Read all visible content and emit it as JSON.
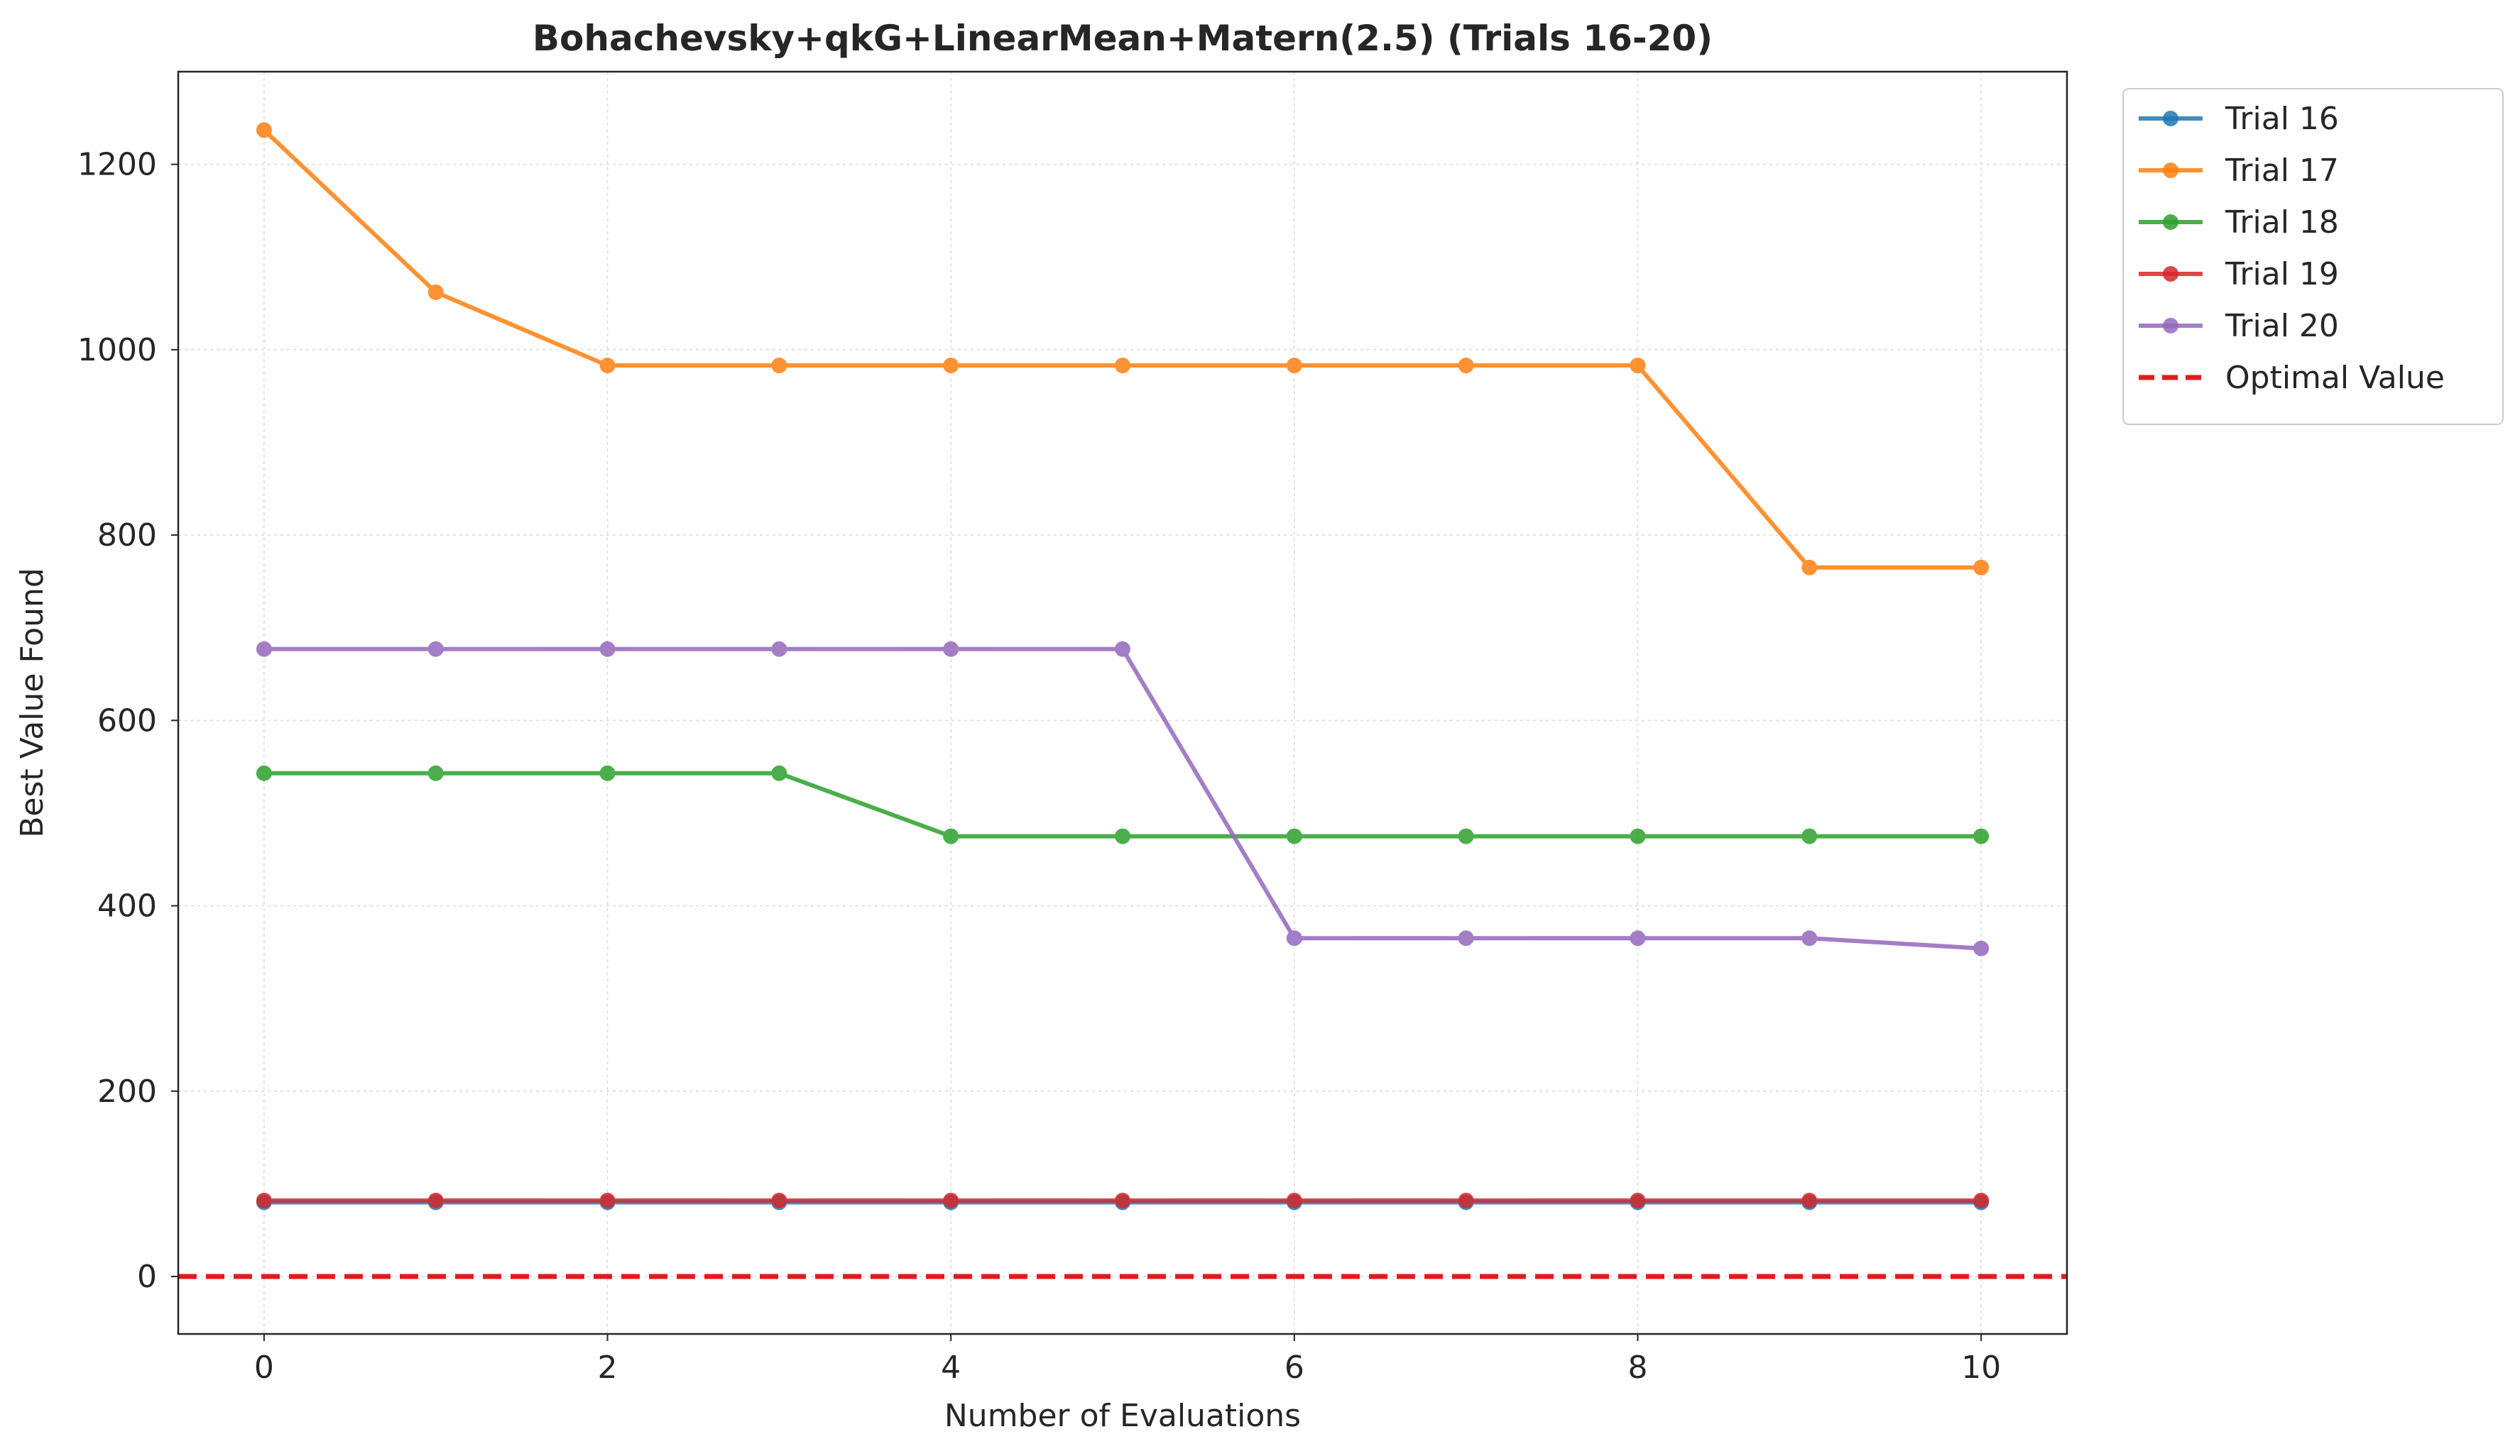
{
  "chart_data": {
    "type": "line",
    "title": "Bohachevsky+qkG+LinearMean+Matern(2.5) (Trials 16-20)",
    "xlabel": "Number of Evaluations",
    "ylabel": "Best Value Found",
    "xlim": [
      -0.5,
      10.5
    ],
    "ylim": [
      -62,
      1300
    ],
    "xticks": [
      0,
      2,
      4,
      6,
      8,
      10
    ],
    "yticks": [
      0,
      200,
      400,
      600,
      800,
      1000,
      1200
    ],
    "grid": true,
    "legend_position": "outside-top-right",
    "x": [
      0,
      1,
      2,
      3,
      4,
      5,
      6,
      7,
      8,
      9,
      10
    ],
    "series": [
      {
        "name": "Trial 16",
        "color": "#1f77b4",
        "values": [
          80,
          80,
          80,
          80,
          80,
          80,
          80,
          80,
          80,
          80,
          80
        ]
      },
      {
        "name": "Trial 17",
        "color": "#ff7f0e",
        "values": [
          1237,
          1062,
          983,
          983,
          983,
          983,
          983,
          983,
          983,
          765,
          765
        ]
      },
      {
        "name": "Trial 18",
        "color": "#2ca02c",
        "values": [
          543,
          543,
          543,
          543,
          475,
          475,
          475,
          475,
          475,
          475,
          475
        ]
      },
      {
        "name": "Trial 19",
        "color": "#d62728",
        "values": [
          82,
          82,
          82,
          82,
          82,
          82,
          82,
          82,
          82,
          82,
          82
        ]
      },
      {
        "name": "Trial 20",
        "color": "#9467bd",
        "values": [
          677,
          677,
          677,
          677,
          677,
          677,
          365,
          365,
          365,
          365,
          354
        ]
      }
    ],
    "reference_line": {
      "name": "Optimal Value",
      "y": 0,
      "color": "#e31a1c",
      "style": "dashed"
    }
  }
}
